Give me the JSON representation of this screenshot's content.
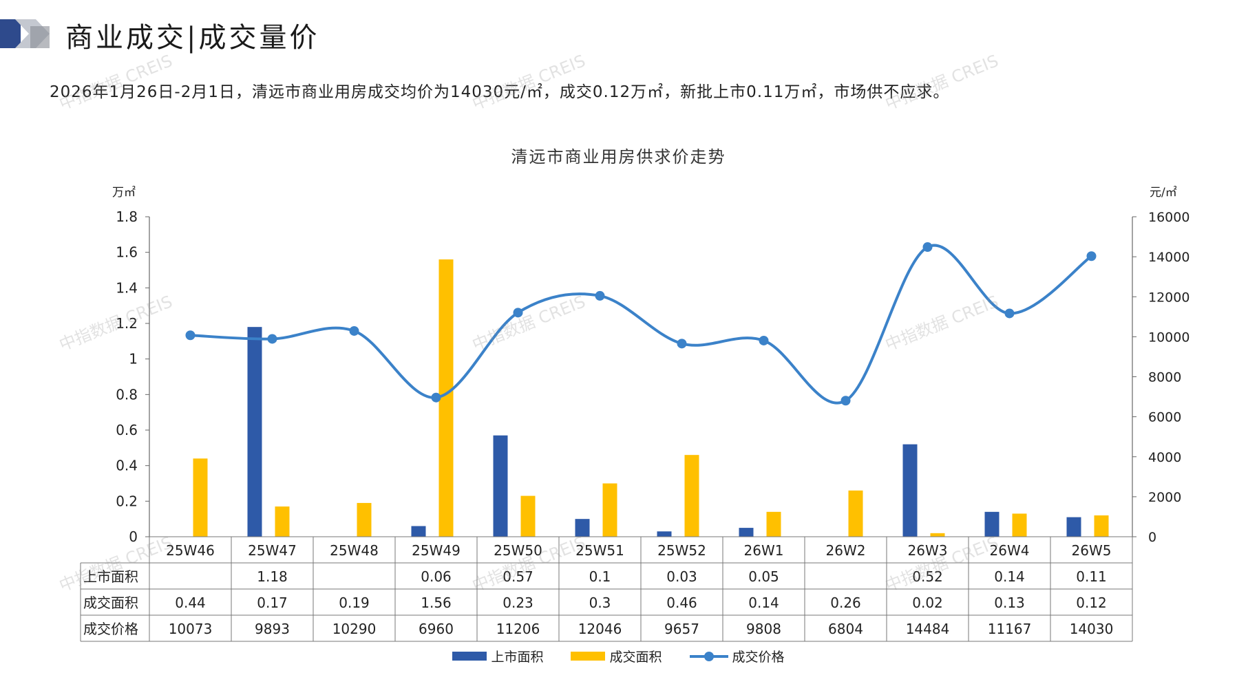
{
  "page": {
    "title": "商业成交|成交量价",
    "summary": "2026年1月26日-2月1日，清远市商业用房成交均价为14030元/㎡，成交0.12万㎡，新批上市0.11万㎡，市场供不应求。",
    "watermark": "中指数据 CREIS"
  },
  "colors": {
    "supply": "#2e5aa8",
    "deal": "#ffc000",
    "price": "#3b82c9",
    "logo_dark": "#2e4a8c",
    "logo_mid": "#c4c8d0"
  },
  "chart_data": {
    "type": "bar+line",
    "title": "清远市商业用房供求价走势",
    "y_left_unit": "万㎡",
    "y_right_unit": "元/㎡",
    "y_left_range": [
      0,
      1.8
    ],
    "y_left_ticks": [
      "0",
      "0.2",
      "0.4",
      "0.6",
      "0.8",
      "1",
      "1.2",
      "1.4",
      "1.6",
      "1.8"
    ],
    "y_right_range": [
      0,
      16000
    ],
    "y_right_ticks": [
      "0",
      "2000",
      "4000",
      "6000",
      "8000",
      "10000",
      "12000",
      "14000",
      "16000"
    ],
    "categories": [
      "25W46",
      "25W47",
      "25W48",
      "25W49",
      "25W50",
      "25W51",
      "25W52",
      "26W1",
      "26W2",
      "26W3",
      "26W4",
      "26W5"
    ],
    "series": [
      {
        "name": "上市面积",
        "type": "bar",
        "axis": "left",
        "values": [
          null,
          1.18,
          null,
          0.06,
          0.57,
          0.1,
          0.03,
          0.05,
          null,
          0.52,
          0.14,
          0.11
        ]
      },
      {
        "name": "成交面积",
        "type": "bar",
        "axis": "left",
        "values": [
          0.44,
          0.17,
          0.19,
          1.56,
          0.23,
          0.3,
          0.46,
          0.14,
          0.26,
          0.02,
          0.13,
          0.12
        ]
      },
      {
        "name": "成交价格",
        "type": "line",
        "axis": "right",
        "values": [
          10073,
          9893,
          10290,
          6960,
          11206,
          12046,
          9657,
          9808,
          6804,
          14484,
          11167,
          14030
        ]
      }
    ],
    "table_rows": [
      {
        "label": "上市面积",
        "cells": [
          "",
          "1.18",
          "",
          "0.06",
          "0.57",
          "0.1",
          "0.03",
          "0.05",
          "",
          "0.52",
          "0.14",
          "0.11"
        ]
      },
      {
        "label": "成交面积",
        "cells": [
          "0.44",
          "0.17",
          "0.19",
          "1.56",
          "0.23",
          "0.3",
          "0.46",
          "0.14",
          "0.26",
          "0.02",
          "0.13",
          "0.12"
        ]
      },
      {
        "label": "成交价格",
        "cells": [
          "10073",
          "9893",
          "10290",
          "6960",
          "11206",
          "12046",
          "9657",
          "9808",
          "6804",
          "14484",
          "11167",
          "14030"
        ]
      }
    ],
    "legend": [
      "上市面积",
      "成交面积",
      "成交价格"
    ],
    "legend_position": "bottom",
    "grid": false
  }
}
